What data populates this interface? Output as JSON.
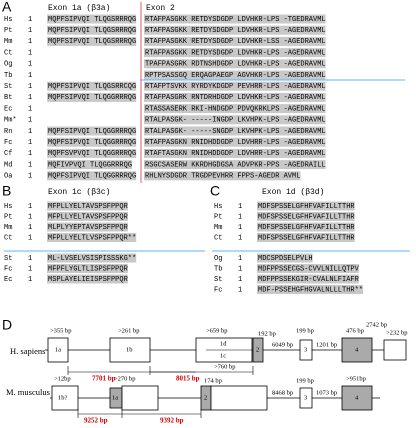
{
  "panel_a": {
    "label": "A",
    "headers": [
      "Exon 1a (β3a)",
      "Exon 2"
    ],
    "rows": [
      {
        "species": "Hs",
        "start": 1,
        "exon1a": "MQPFSIPVQI TLQGSRRRQG",
        "exon2": "RTAFPASGKK RETDYSDGDP LDVHKR-LPS -TGEDRAVML"
      },
      {
        "species": "Pt",
        "start": 1,
        "exon1a": "MQPFSIPVQI TLQGSRRRQG",
        "exon2": "RTAFPASGKK RETDYSDGDP LDVHKR-LPS -AGEDRAVML"
      },
      {
        "species": "Mm",
        "start": 1,
        "exon1a": "MQPFSIPVQI TLQGSRRRQG",
        "exon2": "RTAFPASGKK RETDYSDGDP LDVHKR-LSS -AGEDRAVML"
      },
      {
        "species": "Ct",
        "start": 1,
        "exon1a": "",
        "exon2": "RTAFPASGKK RETDYSDGDP LDVHKR-LPS -AGEDRAVML"
      },
      {
        "species": "Og",
        "start": 1,
        "exon1a": "",
        "exon2": "TPAFPASGRK RDTNSHDGDP LDVHKR-LPS -AGEDRAVML"
      },
      {
        "species": "Tb",
        "start": 1,
        "exon1a": "",
        "exon2": "RPTPSASSGQ ERQAGPAEGP AGVHKR-LPS -AGEDRAVML"
      },
      {
        "species": "St",
        "start": 1,
        "exon1a": "MQPFSIPVQI TLQGSRRCQG",
        "exon2": "RTAFPTSVKK RYRDYKDGDP PEVHRR-LPS -AGEDRAVML"
      },
      {
        "species": "Bt",
        "start": 1,
        "exon1a": "MQPFSIPVQI TLQGGRRRQG",
        "exon2": "RTAFPASGRK RNTDRHDGDP LDVHKR-LPS -AGEDRAVML"
      },
      {
        "species": "Ec",
        "start": 1,
        "exon1a": "",
        "exon2": "RTASSASERK RKI-HNDGDP PDVQKRKLPS -AGEDRAVML"
      },
      {
        "species": "Mm*",
        "start": 1,
        "exon1a": "",
        "exon2": "RTALPASGK- -----INGDP LKVHPK-LPS -AGEDRAVML"
      },
      {
        "species": "Rn",
        "start": 1,
        "exon1a": "MQPFSIPVQI TLQGGRRRQG",
        "exon2": "RTALPASGK- -----SNGDP LKVHPK-LPS -AGEDRAVML"
      },
      {
        "species": "Fc",
        "start": 1,
        "exon1a": "MQPFSIPVQI TLQGGRRRQG",
        "exon2": "RTAFPASGKN RNIDHDDGDP LDVHRR-LPS -AGEDRAVML"
      },
      {
        "species": "Cf",
        "start": 1,
        "exon1a": "MQPFSVPVQI TLQGGRRRQG",
        "exon2": "RTAFTASGKN RNIDHDDGDP LDVHRR-LPS -AGEDRAVML"
      },
      {
        "species": "Md",
        "start": 1,
        "exon1a": "MQFIVPVQI TLQGGRRRQG",
        "exon2": "RSGCSASERW KKRDHGDGSA ADVPKR-PPS -AGEDRAILL"
      },
      {
        "species": "Oa",
        "start": 1,
        "exon1a": "MQPFSIPVQI TLQGGRRRQG",
        "exon2": "RHLNYSDGDR TRGDPEVHRR FPPS-AGEDR AVML"
      }
    ]
  },
  "panel_b": {
    "label": "B",
    "header": "Exon 1c (β3c)",
    "rows": [
      {
        "species": "Hs",
        "start": 1,
        "seq": "MFPLLYELTAVSPSFPPQR"
      },
      {
        "species": "Pt",
        "start": 1,
        "seq": "MFPLLYELTAVSPSFPPQR"
      },
      {
        "species": "Mm",
        "start": 1,
        "seq": "MLPLYYEPTAVSPSFPPQR"
      },
      {
        "species": "Ct",
        "start": 1,
        "seq": "MFPLLYELTLVSPSFPPQR**"
      },
      {
        "species": "St",
        "start": 1,
        "seq": "ML-LVSELVSISPISSSKG**"
      },
      {
        "species": "Fc",
        "start": 1,
        "seq": "MFPFLYGLTLISPSFPPQR"
      },
      {
        "species": "Ec",
        "start": 1,
        "seq": "MSPLAYELIEISPSFPPQR"
      }
    ]
  },
  "panel_c": {
    "label": "C",
    "header": "Exon 1d (β3d)",
    "rows": [
      {
        "species": "Hs",
        "start": 1,
        "seq": "MDFSPSSELGFHFVAFILLTTHR"
      },
      {
        "species": "Pt",
        "start": 1,
        "seq": "MDFSPSSELGFHFVAFILLTTHR"
      },
      {
        "species": "Mm",
        "start": 1,
        "seq": "MDFSPSSELGFHFVAFILLTTHR"
      },
      {
        "species": "Ct",
        "start": 1,
        "seq": "MDFSPSSELGFHFVAFILLTTHR"
      },
      {
        "species": "Og",
        "start": 1,
        "seq": "MDCSPDSELPVLH"
      },
      {
        "species": "Tb",
        "start": 1,
        "seq": "MDFPPSSECGS-CVVLNILLQTPV"
      },
      {
        "species": "St",
        "start": 1,
        "seq": "MDFPPSSEKGIR-CVALNLFIAFR"
      },
      {
        "species": "Fc",
        "start": 1,
        "seq": "MDF-PSSEHGFHGVALNLLLTHR**"
      }
    ]
  },
  "panel_d": {
    "label": "D",
    "human": {
      "name": "H. sapiens",
      "labels": [
        ">355 bp",
        "1a",
        ">261 bp",
        "1b",
        ">659 bp",
        "1d",
        "1c",
        ">760 bp",
        "192 bp",
        "2",
        "6049 bp",
        "199 bp",
        "3",
        "1201 bp",
        "476 bp",
        "4",
        "2742 bp",
        ">232 bp"
      ],
      "distances": [
        "7701 bp",
        "8015 bp"
      ]
    },
    "mouse": {
      "name": "M. musculus",
      "labels": [
        ">12bp",
        "1b?",
        ">270 bp",
        "1a",
        "174 bp",
        "2",
        "8468 bp",
        "199 bp",
        "3",
        "1073 bp",
        ">951bp",
        "4"
      ],
      "distances": [
        "9252 bp",
        "9392 bp"
      ]
    }
  }
}
